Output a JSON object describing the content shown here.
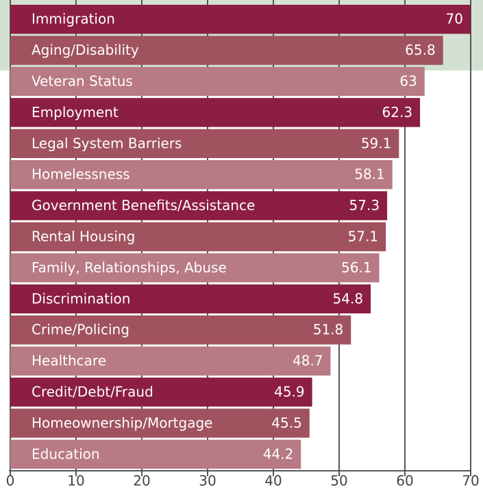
{
  "chart_data": {
    "type": "bar",
    "orientation": "horizontal",
    "categories": [
      "Immigration",
      "Aging/Disability",
      "Veteran Status",
      "Employment",
      "Legal System Barriers",
      "Homelessness",
      "Government Benefits/Assistance",
      "Rental Housing",
      "Family, Relationships, Abuse",
      "Discrimination",
      "Crime/Policing",
      "Healthcare",
      "Credit/Debt/Fraud",
      "Homeownership/Mortgage",
      "Education"
    ],
    "values": [
      70,
      65.8,
      63,
      62.3,
      59.1,
      58.1,
      57.3,
      57.1,
      56.1,
      54.8,
      51.8,
      48.7,
      45.9,
      45.5,
      44.2
    ],
    "colors": [
      "#8b1e41",
      "#a0525f",
      "#b87a84",
      "#8b1e41",
      "#a0525f",
      "#b87a84",
      "#8b1e41",
      "#a0525f",
      "#b87a84",
      "#8b1e41",
      "#a0525f",
      "#b87a84",
      "#8b1e41",
      "#a0525f",
      "#b87a84"
    ],
    "xlim": [
      0,
      70
    ],
    "xticks": [
      0,
      10,
      20,
      30,
      40,
      50,
      60,
      70
    ],
    "grid": true
  }
}
